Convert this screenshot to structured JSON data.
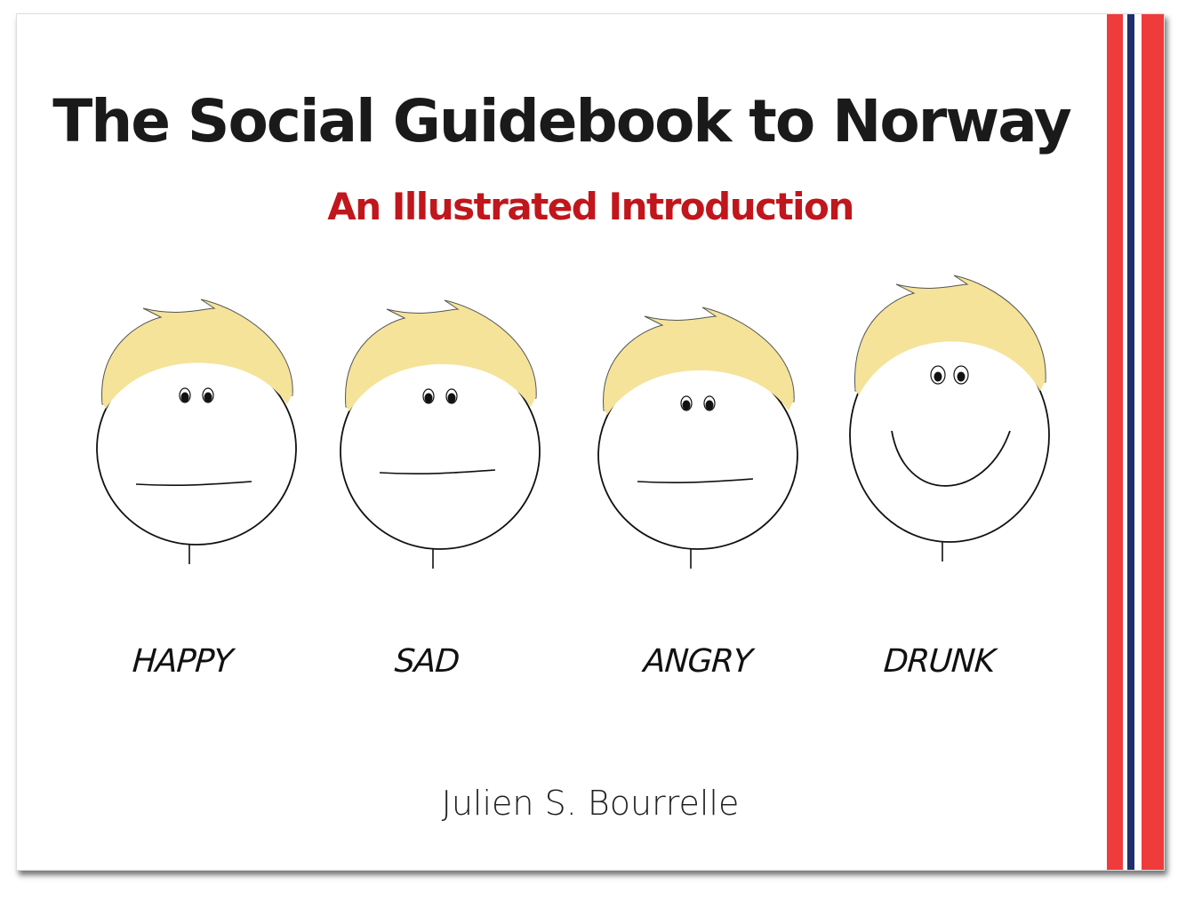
{
  "cover": {
    "title": "The Social Guidebook to Norway",
    "subtitle": "An Illustrated Introduction",
    "author": "Julien S. Bourrelle",
    "faces": [
      {
        "label": "HAPPY",
        "expression": "flat"
      },
      {
        "label": "SAD",
        "expression": "flat"
      },
      {
        "label": "ANGRY",
        "expression": "flat"
      },
      {
        "label": "DRUNK",
        "expression": "smile"
      }
    ],
    "colors": {
      "title": "#1a1a1a",
      "subtitle": "#c0161c",
      "hair": "#f5e39a",
      "flag_red": "#ef3b3b",
      "flag_blue": "#1f2f6e"
    }
  }
}
